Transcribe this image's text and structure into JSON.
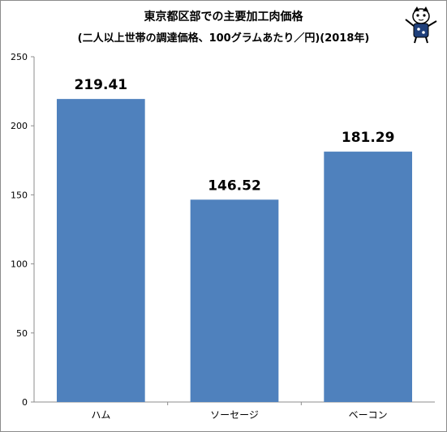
{
  "chart_data": {
    "type": "bar",
    "title": "東京都区部での主要加工肉価格",
    "subtitle": "(二人以上世帯の調達価格、100グラムあたり／円)(2018年)",
    "categories": [
      "ハム",
      "ソーセージ",
      "ベーコン"
    ],
    "values": [
      219.41,
      146.52,
      181.29
    ],
    "value_labels": [
      "219.41",
      "146.52",
      "181.29"
    ],
    "yticks": [
      0,
      50,
      100,
      150,
      200,
      250
    ],
    "ylim": [
      0,
      250
    ],
    "xlabel": "",
    "ylabel": "",
    "grid": false,
    "legend": "none",
    "bar_color": "#4f81bd"
  }
}
